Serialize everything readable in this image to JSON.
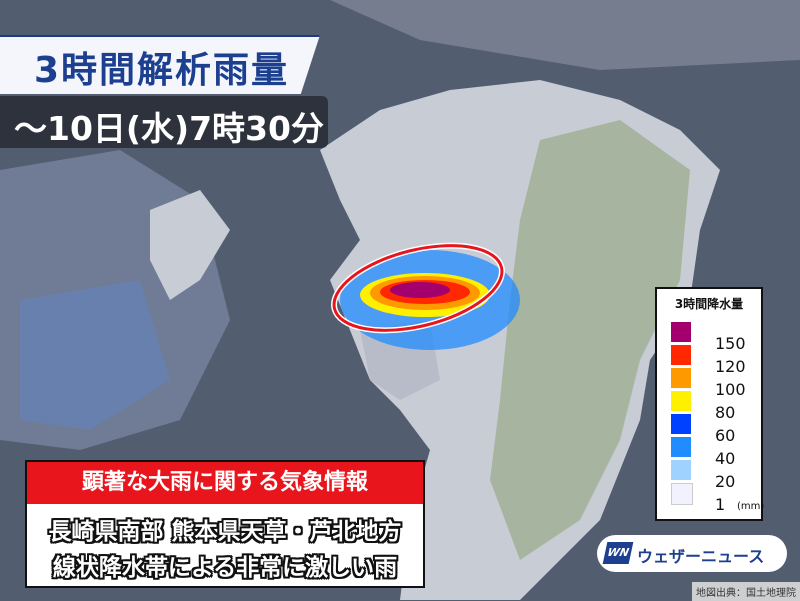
{
  "header": {
    "title": "3時間解析雨量",
    "subtitle": "～10日(水)7時30分"
  },
  "legend": {
    "title": "3時間降水量",
    "unit": "(mm)",
    "items": [
      {
        "label": "150",
        "color": "#a3006e"
      },
      {
        "label": "120",
        "color": "#ff2800"
      },
      {
        "label": "100",
        "color": "#ff9900"
      },
      {
        "label": "80",
        "color": "#fff000"
      },
      {
        "label": "60",
        "color": "#0041ff"
      },
      {
        "label": "40",
        "color": "#218cff"
      },
      {
        "label": "20",
        "color": "#a0d2ff"
      },
      {
        "label": "1",
        "color": "#f2f2ff"
      }
    ]
  },
  "info": {
    "heading": "顕著な大雨に関する気象情報",
    "line1": "長崎県南部 熊本県天草・芦北地方",
    "line2": "線状降水帯による非常に激しい雨"
  },
  "logo": {
    "mark": "WN",
    "text": "ウェザーニュース"
  },
  "credit": "地図出典：国土地理院",
  "colors": {
    "sea": "#535d70",
    "land": "#a7b4a0",
    "highlight_ellipse": "#e8161c"
  }
}
